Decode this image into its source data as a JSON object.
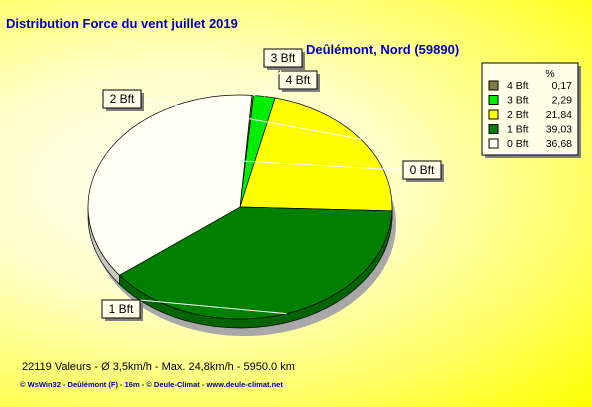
{
  "title": "Distribution Force du vent  juillet 2019",
  "subtitle": "Deûlémont, Nord (59890)",
  "footer": {
    "stats": "22119 Valeurs   -   Ø 3,5km/h  -  Max. 24,8km/h   -    5950.0 km",
    "credits": "© WsWin32  -  Deûlémont (F) - 16m  -  © Deule-Climat - www.deule-climat.net"
  },
  "chart_data": {
    "type": "pie",
    "legend_header": "%",
    "legend_position": "top-right",
    "slices": [
      {
        "label": "4 Bft",
        "value": 0.17,
        "value_text": "0,17",
        "color": "#808040"
      },
      {
        "label": "3 Bft",
        "value": 2.29,
        "value_text": "2,29",
        "color": "#00ee00"
      },
      {
        "label": "2 Bft",
        "value": 21.84,
        "value_text": "21,84",
        "color": "#ffff00"
      },
      {
        "label": "1 Bft",
        "value": 39.03,
        "value_text": "39,03",
        "color": "#008000"
      },
      {
        "label": "0 Bft",
        "value": 36.68,
        "value_text": "36,68",
        "color": "#fffff6"
      }
    ]
  }
}
